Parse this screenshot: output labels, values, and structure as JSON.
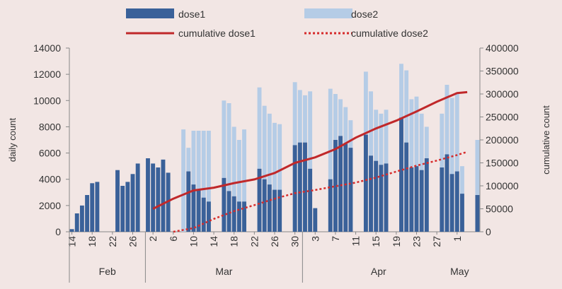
{
  "chart_data": {
    "type": "bar",
    "title": "",
    "ylabel": "daily count",
    "y2label": "cumulative count",
    "ylim": [
      0,
      14000
    ],
    "y2lim": [
      0,
      400000
    ],
    "yticks": [
      "0",
      "2000",
      "4000",
      "6000",
      "8000",
      "10000",
      "12000",
      "14000"
    ],
    "y2ticks": [
      "0",
      "50000",
      "100000",
      "150000",
      "200000",
      "250000",
      "300000",
      "350000",
      "400000"
    ],
    "legend_position": "top",
    "xtick_labels": [
      {
        "day": 0,
        "label": "14"
      },
      {
        "day": 4,
        "label": "18"
      },
      {
        "day": 8,
        "label": "22"
      },
      {
        "day": 12,
        "label": "26"
      },
      {
        "day": 16,
        "label": "2"
      },
      {
        "day": 20,
        "label": "6"
      },
      {
        "day": 24,
        "label": "10"
      },
      {
        "day": 28,
        "label": "14"
      },
      {
        "day": 32,
        "label": "18"
      },
      {
        "day": 36,
        "label": "22"
      },
      {
        "day": 40,
        "label": "26"
      },
      {
        "day": 44,
        "label": "30"
      },
      {
        "day": 48,
        "label": "3"
      },
      {
        "day": 52,
        "label": "7"
      },
      {
        "day": 56,
        "label": "11"
      },
      {
        "day": 60,
        "label": "15"
      },
      {
        "day": 64,
        "label": "19"
      },
      {
        "day": 68,
        "label": "23"
      },
      {
        "day": 72,
        "label": "27"
      },
      {
        "day": 76,
        "label": "1"
      }
    ],
    "months": [
      {
        "label": "Feb",
        "start": 0,
        "end": 15
      },
      {
        "label": "Mar",
        "start": 15,
        "end": 46
      },
      {
        "label": "Apr",
        "start": 46,
        "end": 76
      },
      {
        "label": "May",
        "start": 76,
        "end": 78
      }
    ],
    "month_dividers": [
      15,
      46
    ],
    "series": [
      {
        "name": "dose1",
        "kind": "bar",
        "axis": "left",
        "color": "#3a6199",
        "values": [
          200,
          1400,
          2000,
          2800,
          3700,
          3800,
          0,
          0,
          0,
          4700,
          3500,
          3800,
          4400,
          5200,
          0,
          5600,
          5200,
          4900,
          5500,
          4500,
          0,
          0,
          0,
          4600,
          3600,
          3200,
          2600,
          2300,
          0,
          0,
          4100,
          3100,
          2700,
          2300,
          2300,
          0,
          0,
          4800,
          4000,
          3600,
          3200,
          3200,
          0,
          0,
          6600,
          6800,
          6800,
          4800,
          1800,
          0,
          0,
          4000,
          7000,
          7300,
          6700,
          6400,
          0,
          0,
          7400,
          5800,
          5400,
          5100,
          5200,
          0,
          0,
          8700,
          6800,
          4900,
          5000,
          4700,
          5600,
          0,
          0,
          4900,
          5900,
          4400,
          4600,
          2900,
          0,
          0,
          2800
        ]
      },
      {
        "name": "dose2",
        "kind": "bar",
        "axis": "left",
        "color": "#b5cce6",
        "values": [
          0,
          0,
          0,
          0,
          0,
          0,
          0,
          0,
          0,
          0,
          0,
          0,
          0,
          0,
          0,
          0,
          0,
          0,
          0,
          0,
          0,
          0,
          7800,
          6400,
          7700,
          7700,
          7700,
          7700,
          0,
          0,
          10000,
          9800,
          8000,
          7000,
          7800,
          0,
          0,
          11000,
          9600,
          9000,
          8300,
          8200,
          0,
          0,
          11400,
          10800,
          10400,
          10700,
          0,
          0,
          0,
          10900,
          10500,
          10100,
          9500,
          8500,
          0,
          0,
          12200,
          10700,
          9300,
          9000,
          9300,
          0,
          0,
          12800,
          12300,
          10100,
          10300,
          9000,
          8000,
          0,
          0,
          9000,
          11200,
          10200,
          10600,
          5000,
          0,
          0,
          7000
        ]
      },
      {
        "name": "cumulative dose1",
        "kind": "line",
        "axis": "right",
        "color": "#c0282a",
        "x": [
          16,
          20,
          24,
          28,
          32,
          36,
          40,
          44,
          48,
          52,
          56,
          60,
          64,
          68,
          72,
          76,
          78
        ],
        "values": [
          50000,
          72000,
          90000,
          96000,
          106000,
          114000,
          128000,
          150000,
          162000,
          180000,
          205000,
          225000,
          242000,
          262000,
          283000,
          302000,
          304000
        ]
      },
      {
        "name": "cumulative dose2",
        "kind": "dotted-line",
        "axis": "right",
        "color": "#d62b2b",
        "x": [
          20,
          24,
          28,
          32,
          36,
          40,
          44,
          48,
          52,
          56,
          60,
          64,
          68,
          72,
          76,
          78
        ],
        "values": [
          0,
          8000,
          28000,
          45000,
          58000,
          72000,
          84000,
          91000,
          99000,
          107000,
          118000,
          131000,
          144000,
          155000,
          167000,
          174000
        ]
      }
    ]
  }
}
